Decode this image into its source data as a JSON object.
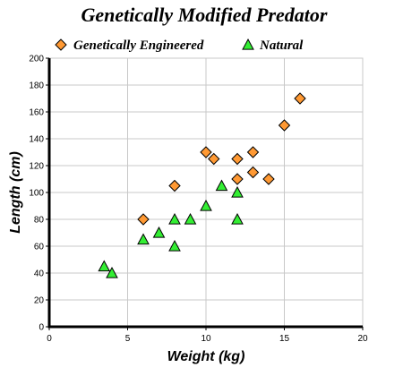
{
  "chart_data": {
    "type": "scatter",
    "title": "Genetically Modified Predator",
    "xlabel": "Weight (kg)",
    "ylabel": "Length (cm)",
    "xlim": [
      0,
      20
    ],
    "ylim": [
      0,
      200
    ],
    "x_ticks": [
      0,
      5,
      10,
      15,
      20
    ],
    "y_ticks": [
      0,
      20,
      40,
      60,
      80,
      100,
      120,
      140,
      160,
      180,
      200
    ],
    "grid": true,
    "legend_position": "top",
    "series": [
      {
        "name": "Genetically Engineered",
        "marker": "diamond",
        "color": "#ff9933",
        "points": [
          [
            6,
            80
          ],
          [
            8,
            105
          ],
          [
            10,
            130
          ],
          [
            10.5,
            125
          ],
          [
            12,
            125
          ],
          [
            12,
            110
          ],
          [
            13,
            130
          ],
          [
            13,
            115
          ],
          [
            14,
            110
          ],
          [
            15,
            150
          ],
          [
            16,
            170
          ]
        ]
      },
      {
        "name": "Natural",
        "marker": "triangle",
        "color": "#33ee33",
        "points": [
          [
            3.5,
            45
          ],
          [
            4,
            40
          ],
          [
            6,
            65
          ],
          [
            7,
            70
          ],
          [
            8,
            80
          ],
          [
            8,
            60
          ],
          [
            9,
            80
          ],
          [
            10,
            90
          ],
          [
            11,
            105
          ],
          [
            12,
            100
          ],
          [
            12,
            80
          ]
        ]
      }
    ]
  }
}
